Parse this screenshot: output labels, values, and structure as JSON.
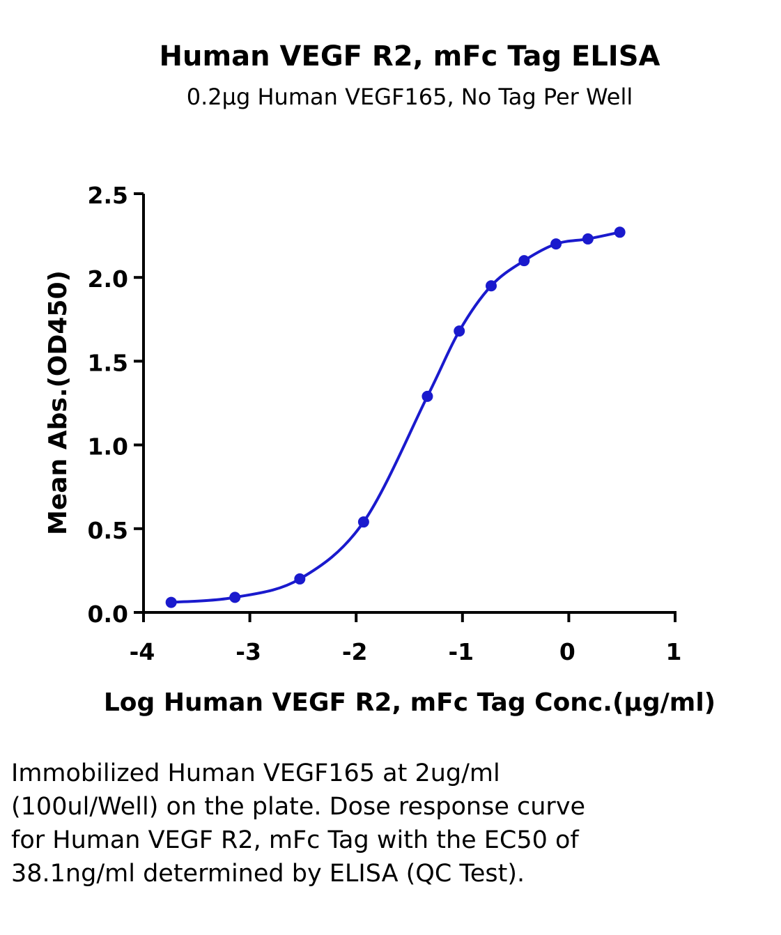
{
  "chart_data": {
    "type": "line",
    "title": "Human VEGF R2, mFc Tag ELISA",
    "subtitle": "0.2μg Human VEGF165, No Tag Per Well",
    "xlabel": "Log Human VEGF R2, mFc Tag Conc.(μg/ml)",
    "ylabel": "Mean Abs.(OD450)",
    "xlim": [
      -4,
      1
    ],
    "ylim": [
      0,
      2.5
    ],
    "x_ticks": [
      "-4",
      "-3",
      "-2",
      "-1",
      "0",
      "1"
    ],
    "y_ticks": [
      "0.0",
      "0.5",
      "1.0",
      "1.5",
      "2.0",
      "2.5"
    ],
    "grid": false,
    "series": [
      {
        "color": "#1a1acd",
        "x": [
          -3.74,
          -3.14,
          -2.53,
          -1.93,
          -1.33,
          -1.03,
          -0.73,
          -0.42,
          -0.12,
          0.18,
          0.48
        ],
        "y": [
          0.06,
          0.09,
          0.2,
          0.54,
          1.29,
          1.68,
          1.95,
          2.1,
          2.2,
          2.23,
          2.27
        ]
      }
    ]
  },
  "caption": "Immobilized Human VEGF165 at 2ug/ml (100ul/Well) on the plate. Dose response curve for Human VEGF R2, mFc Tag with the EC50 of 38.1ng/ml determined by ELISA (QC Test)."
}
